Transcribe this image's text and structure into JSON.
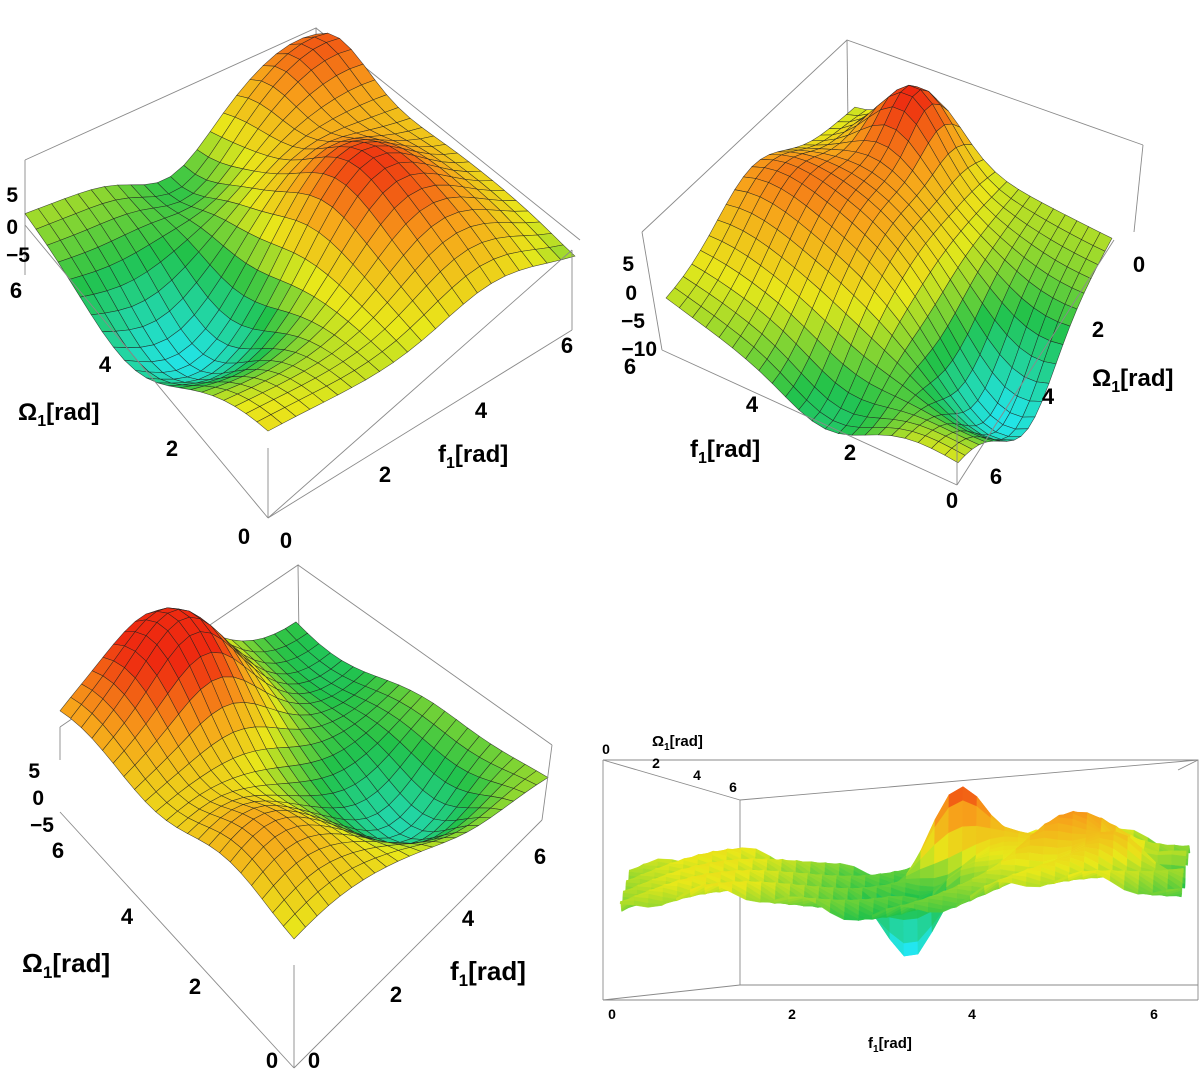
{
  "chart_data": [
    {
      "type": "surface3d",
      "panel": "top-left",
      "xlabel": "f",
      "xlabel_sub": "1",
      "xlabel_unit": "[rad]",
      "ylabel": "Ω",
      "ylabel_sub": "1",
      "ylabel_unit": "[rad]",
      "x_ticks": [
        "0",
        "2",
        "4",
        "6"
      ],
      "y_ticks": [
        "0",
        "2",
        "4",
        "6"
      ],
      "z_ticks": [
        "5",
        "0",
        "−5"
      ],
      "xlim": [
        0,
        6.28
      ],
      "ylim": [
        0,
        6.28
      ],
      "zlim": [
        -7,
        7
      ]
    },
    {
      "type": "surface3d",
      "panel": "top-right",
      "xlabel": "f",
      "xlabel_sub": "1",
      "xlabel_unit": "[rad]",
      "ylabel": "Ω",
      "ylabel_sub": "1",
      "ylabel_unit": "[rad]",
      "x_ticks": [
        "0",
        "2",
        "4",
        "6"
      ],
      "y_ticks": [
        "0",
        "2",
        "4",
        "6"
      ],
      "z_ticks": [
        "5",
        "0",
        "−5",
        "−10"
      ],
      "xlim": [
        0,
        6.28
      ],
      "ylim": [
        0,
        6.28
      ],
      "zlim": [
        -10,
        7
      ]
    },
    {
      "type": "surface3d",
      "panel": "bottom-left",
      "xlabel": "f",
      "xlabel_sub": "1",
      "xlabel_unit": "[rad]",
      "ylabel": "Ω",
      "ylabel_sub": "1",
      "ylabel_unit": "[rad]",
      "x_ticks": [
        "0",
        "2",
        "4",
        "6"
      ],
      "y_ticks": [
        "0",
        "2",
        "4",
        "6"
      ],
      "z_ticks": [
        "5",
        "0",
        "−5"
      ],
      "xlim": [
        0,
        6.28
      ],
      "ylim": [
        0,
        6.28
      ],
      "zlim": [
        -7,
        7
      ]
    },
    {
      "type": "surface3d",
      "panel": "bottom-right",
      "xlabel": "f",
      "xlabel_sub": "1",
      "xlabel_unit": "[rad]",
      "ylabel": "Ω",
      "ylabel_sub": "1",
      "ylabel_unit": "[rad]",
      "x_ticks": [
        "0",
        "2",
        "4",
        "6"
      ],
      "y_ticks": [
        "0",
        "2",
        "4",
        "6"
      ],
      "xlim": [
        0,
        6.28
      ],
      "ylim": [
        0,
        6.28
      ]
    }
  ],
  "colors": {
    "low": "#22e6f0",
    "mid_low": "#22c24a",
    "mid": "#e8e81a",
    "mid_high": "#f7a21a",
    "high": "#ee2a10",
    "box": "#8a8a8a",
    "mesh": "#1e1e1e"
  }
}
